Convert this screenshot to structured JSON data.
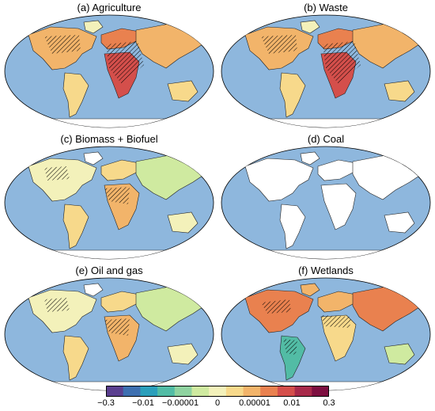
{
  "panels": [
    {
      "id": "a",
      "title": "(a) Agriculture",
      "style": "warm"
    },
    {
      "id": "b",
      "title": "(b) Waste",
      "style": "warm"
    },
    {
      "id": "c",
      "title": "(c) Biomass + Biofuel",
      "style": "mixed"
    },
    {
      "id": "d",
      "title": "(d) Coal",
      "style": "sparse"
    },
    {
      "id": "e",
      "title": "(e) Oil and gas",
      "style": "mixed"
    },
    {
      "id": "f",
      "title": "(f) Wetlands",
      "style": "wetland"
    }
  ],
  "colorbar": {
    "colors": [
      "#5a3f8f",
      "#3d6fb0",
      "#2b9fbb",
      "#52bca5",
      "#8fd3a0",
      "#cfeaa0",
      "#f3f1ba",
      "#f7d98b",
      "#f2b46a",
      "#e9814f",
      "#d44f4b",
      "#a82a4a",
      "#7d0f40"
    ],
    "ticks": [
      "−0.3",
      "−0.01",
      "−0.00001",
      "0",
      "0.00001",
      "0.01",
      "0.3"
    ]
  },
  "colors": {
    "ocean": "#8eb7dd",
    "land_outline": "#222222",
    "ice": "#ffffff"
  }
}
